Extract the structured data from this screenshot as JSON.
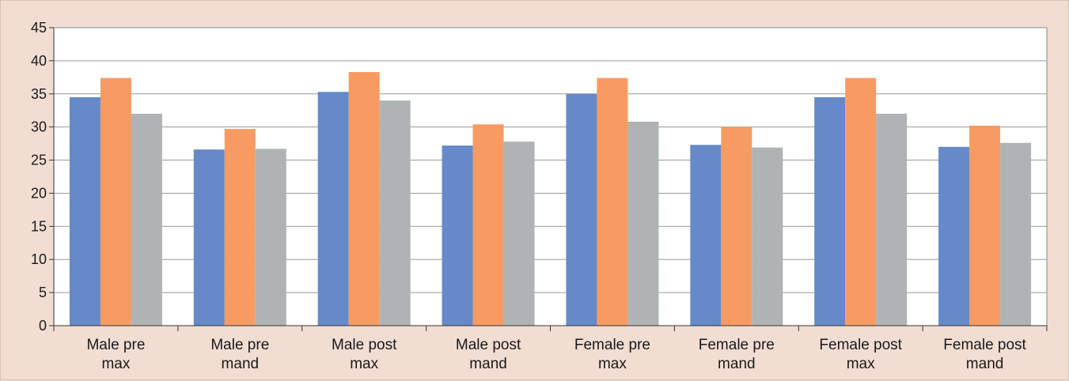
{
  "chart_data": {
    "type": "bar",
    "title": "",
    "xlabel": "",
    "ylabel": "",
    "ylim": [
      0,
      45
    ],
    "yticks": [
      0,
      5,
      10,
      15,
      20,
      25,
      30,
      35,
      40,
      45
    ],
    "grid": true,
    "legend": "none",
    "categories": [
      [
        "Male pre",
        "max"
      ],
      [
        "Male pre",
        "mand"
      ],
      [
        "Male post",
        "max"
      ],
      [
        "Male post",
        "mand"
      ],
      [
        "Female pre",
        "max"
      ],
      [
        "Female pre",
        "mand"
      ],
      [
        "Female post",
        "max"
      ],
      [
        "Female post",
        "mand"
      ]
    ],
    "series": [
      {
        "color": "#6689c8",
        "values": [
          34.5,
          26.6,
          35.3,
          27.2,
          35.0,
          27.3,
          34.5,
          27.0
        ]
      },
      {
        "color": "#f79b63",
        "values": [
          37.4,
          29.7,
          38.3,
          30.4,
          37.4,
          30.0,
          37.4,
          30.2
        ]
      },
      {
        "color": "#b0b3b4",
        "values": [
          32.0,
          26.7,
          34.0,
          27.8,
          30.8,
          26.9,
          32.0,
          27.6
        ]
      }
    ]
  }
}
